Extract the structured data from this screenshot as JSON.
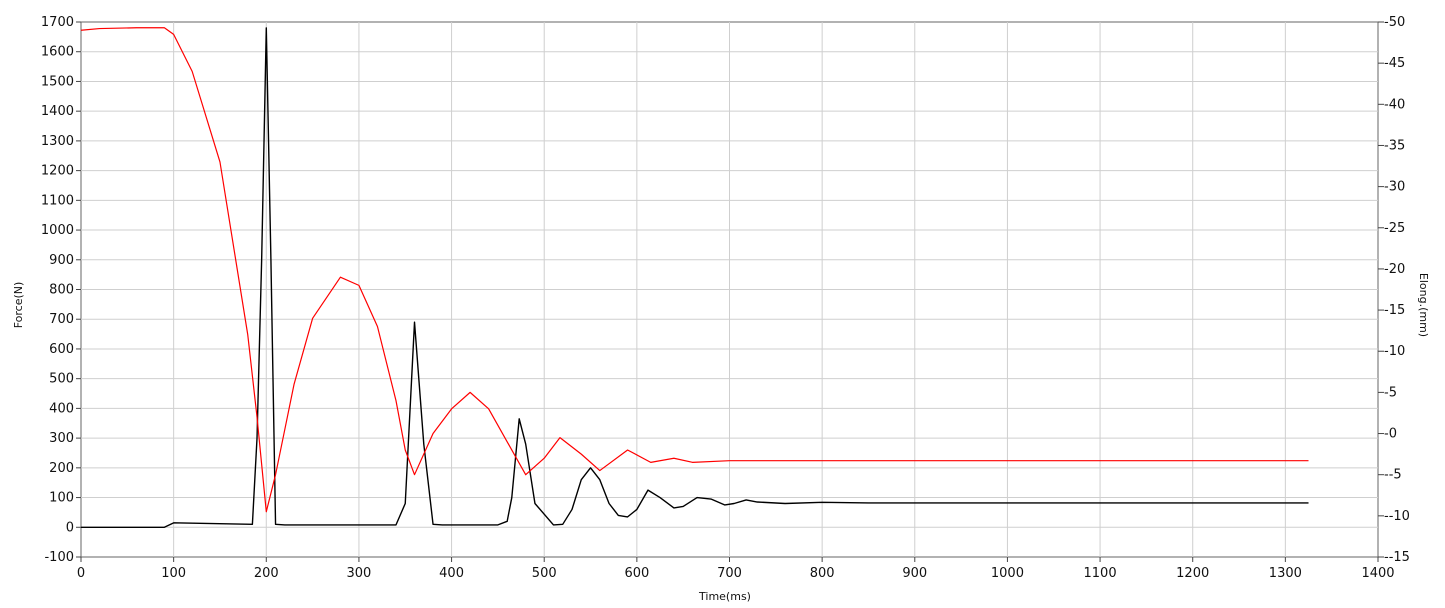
{
  "chart_data": {
    "type": "line",
    "xlabel": "Time(ms)",
    "ylabel_left": "Force(N)",
    "ylabel_right": "Elong.(mm)",
    "xlim": [
      0,
      1400
    ],
    "ylim_left": [
      -100,
      1700
    ],
    "ylim_right": [
      -15,
      50
    ],
    "x_ticks": [
      0,
      100,
      200,
      300,
      400,
      500,
      600,
      700,
      800,
      900,
      1000,
      1100,
      1200,
      1300,
      1400
    ],
    "y_left_ticks": [
      -100,
      0,
      100,
      200,
      300,
      400,
      500,
      600,
      700,
      800,
      900,
      1000,
      1100,
      1200,
      1300,
      1400,
      1500,
      1600,
      1700
    ],
    "y_right_ticks": [
      -15,
      -10,
      -5,
      0,
      5,
      10,
      15,
      20,
      25,
      30,
      35,
      40,
      45,
      50
    ],
    "grid": true,
    "series": [
      {
        "axis": "left",
        "color": "#000000",
        "x": [
          0,
          90,
          100,
          185,
          190,
          195,
          200,
          205,
          210,
          220,
          340,
          350,
          360,
          370,
          380,
          390,
          450,
          460,
          465,
          473,
          480,
          490,
          510,
          520,
          530,
          540,
          550,
          560,
          570,
          580,
          590,
          600,
          612,
          625,
          640,
          650,
          665,
          680,
          695,
          705,
          718,
          730,
          760,
          800,
          850,
          1000,
          1200,
          1325
        ],
        "values": [
          0,
          0,
          15,
          10,
          300,
          900,
          1680,
          900,
          10,
          8,
          8,
          80,
          690,
          280,
          10,
          8,
          8,
          20,
          100,
          365,
          280,
          80,
          8,
          10,
          60,
          160,
          200,
          160,
          80,
          40,
          35,
          60,
          125,
          100,
          65,
          70,
          100,
          95,
          75,
          80,
          92,
          85,
          80,
          84,
          82,
          82,
          82,
          82
        ]
      },
      {
        "axis": "right",
        "color": "#ff0000",
        "x": [
          0,
          20,
          60,
          90,
          100,
          120,
          150,
          180,
          190,
          200,
          210,
          230,
          250,
          280,
          300,
          320,
          340,
          350,
          360,
          380,
          400,
          420,
          440,
          460,
          480,
          500,
          517,
          540,
          560,
          590,
          615,
          640,
          660,
          700,
          800,
          1000,
          1200,
          1325
        ],
        "values": [
          49,
          49.2,
          49.3,
          49.3,
          48.5,
          44,
          33,
          12,
          2,
          -9.5,
          -5,
          6,
          14,
          19,
          18,
          13,
          4,
          -2,
          -5,
          0,
          3,
          5,
          3,
          -1,
          -5,
          -3,
          -0.5,
          -2.5,
          -4.5,
          -2,
          -3.5,
          -3,
          -3.5,
          -3.3,
          -3.3,
          -3.3,
          -3.3,
          -3.3
        ]
      }
    ]
  }
}
